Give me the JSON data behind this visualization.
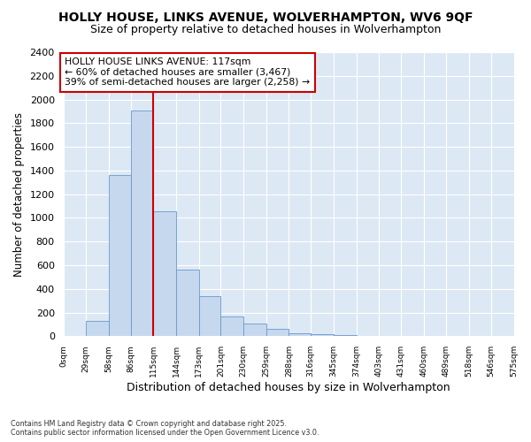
{
  "title1": "HOLLY HOUSE, LINKS AVENUE, WOLVERHAMPTON, WV6 9QF",
  "title2": "Size of property relative to detached houses in Wolverhampton",
  "xlabel": "Distribution of detached houses by size in Wolverhampton",
  "ylabel": "Number of detached properties",
  "footnote1": "Contains HM Land Registry data © Crown copyright and database right 2025.",
  "footnote2": "Contains public sector information licensed under the Open Government Licence v3.0.",
  "annotation_line1": "HOLLY HOUSE LINKS AVENUE: 117sqm",
  "annotation_line2": "← 60% of detached houses are smaller (3,467)",
  "annotation_line3": "39% of semi-detached houses are larger (2,258) →",
  "bin_edges": [
    0,
    29,
    58,
    86,
    115,
    144,
    173,
    201,
    230,
    259,
    288,
    316,
    345,
    374,
    403,
    431,
    460,
    489,
    518,
    546,
    575
  ],
  "bar_heights": [
    0,
    130,
    1360,
    1910,
    1055,
    560,
    335,
    165,
    110,
    60,
    25,
    20,
    10,
    0,
    5,
    0,
    0,
    0,
    0,
    0
  ],
  "bar_color": "#c6d8ee",
  "bar_edge_color": "#6699cc",
  "vline_color": "#cc0000",
  "vline_x": 115,
  "fig_background": "#ffffff",
  "plot_bg_color": "#dde8f5",
  "ylim": [
    0,
    2400
  ],
  "ytick_interval": 200,
  "grid_color": "#ffffff",
  "title_fontsize": 10,
  "subtitle_fontsize": 9
}
